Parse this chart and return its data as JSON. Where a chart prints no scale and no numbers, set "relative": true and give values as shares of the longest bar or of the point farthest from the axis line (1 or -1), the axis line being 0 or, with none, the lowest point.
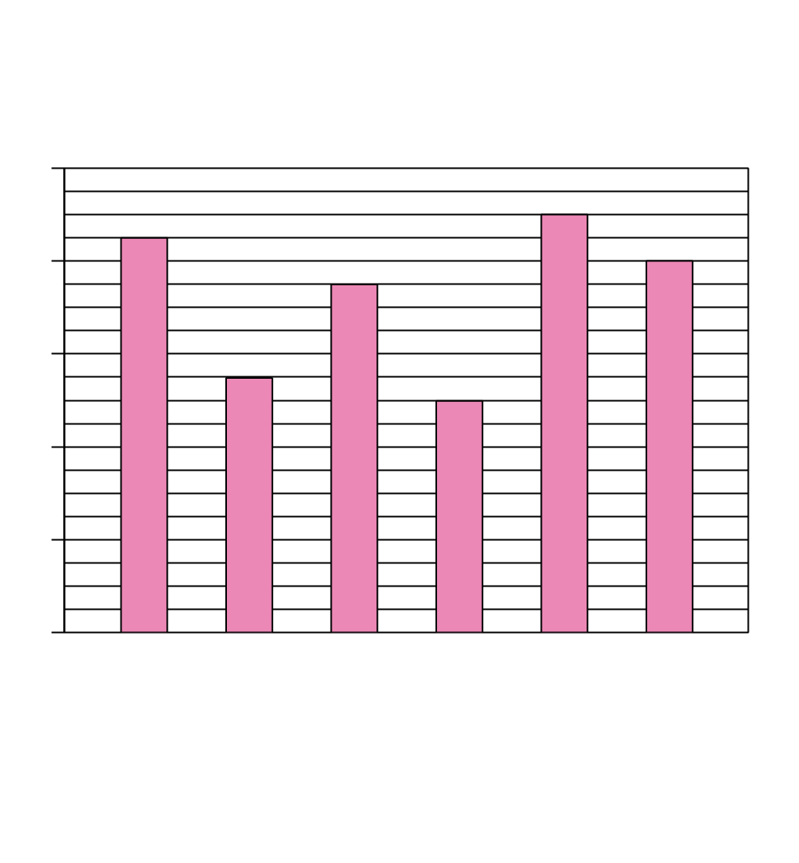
{
  "chart_data": {
    "type": "bar",
    "relative": true,
    "categories": [
      null,
      null,
      null,
      null,
      null,
      null
    ],
    "values": [
      0.944,
      0.609,
      0.833,
      0.554,
      1,
      0.889
    ],
    "color": "#ec88b6",
    "grid": "y"
  }
}
